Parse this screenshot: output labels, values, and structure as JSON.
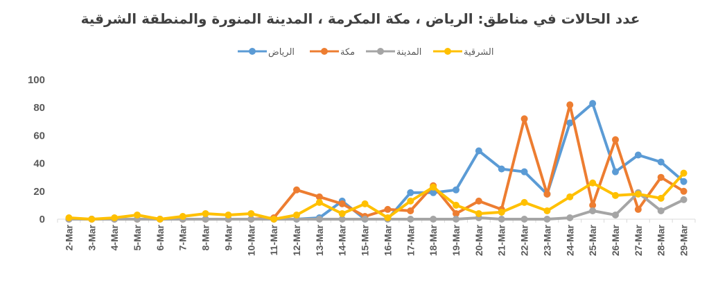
{
  "chart_data": {
    "type": "line",
    "title": "عدد الحالات في مناطق: الرياض ، مكة المكرمة ، المدينة المنورة والمنطقة الشرقية",
    "categories": [
      "2-Mar",
      "3-Mar",
      "4-Mar",
      "5-Mar",
      "6-Mar",
      "7-Mar",
      "8-Mar",
      "9-Mar",
      "10-Mar",
      "11-Mar",
      "12-Mar",
      "13-Mar",
      "14-Mar",
      "15-Mar",
      "16-Mar",
      "17-Mar",
      "18-Mar",
      "19-Mar",
      "20-Mar",
      "21-Mar",
      "22-Mar",
      "23-Mar",
      "24-Mar",
      "25-Mar",
      "26-Mar",
      "27-Mar",
      "28-Mar",
      "29-Mar"
    ],
    "yticks": [
      "0",
      "20",
      "40",
      "60",
      "80",
      "100"
    ],
    "ylim": [
      0,
      100
    ],
    "grid": false,
    "legend_position": "top",
    "series": [
      {
        "name": "الرياض",
        "color": "#5B9BD5",
        "values": [
          0,
          0,
          0,
          0,
          0,
          0,
          0,
          0,
          0,
          0,
          0,
          1,
          13,
          0,
          0,
          19,
          19,
          21,
          49,
          36,
          34,
          18,
          69,
          83,
          34,
          46,
          41,
          27
        ]
      },
      {
        "name": "مكة",
        "color": "#ED7D31",
        "values": [
          0,
          0,
          0,
          0,
          0,
          0,
          0,
          0,
          0,
          1,
          21,
          16,
          11,
          2,
          7,
          6,
          24,
          4,
          13,
          7,
          72,
          18,
          82,
          10,
          57,
          7,
          30,
          20
        ]
      },
      {
        "name": "المدينة",
        "color": "#A5A5A5",
        "values": [
          0,
          0,
          0,
          0,
          0,
          0,
          0,
          0,
          0,
          0,
          0,
          0,
          0,
          0,
          0,
          0,
          0,
          0,
          1,
          0,
          0,
          0,
          1,
          6,
          3,
          19,
          6,
          14
        ]
      },
      {
        "name": "الشرقية",
        "color": "#FFC000",
        "values": [
          1,
          0,
          1,
          3,
          0,
          2,
          4,
          3,
          4,
          0,
          3,
          12,
          4,
          11,
          1,
          13,
          23,
          10,
          4,
          5,
          12,
          6,
          16,
          26,
          17,
          18,
          15,
          33
        ]
      }
    ]
  }
}
